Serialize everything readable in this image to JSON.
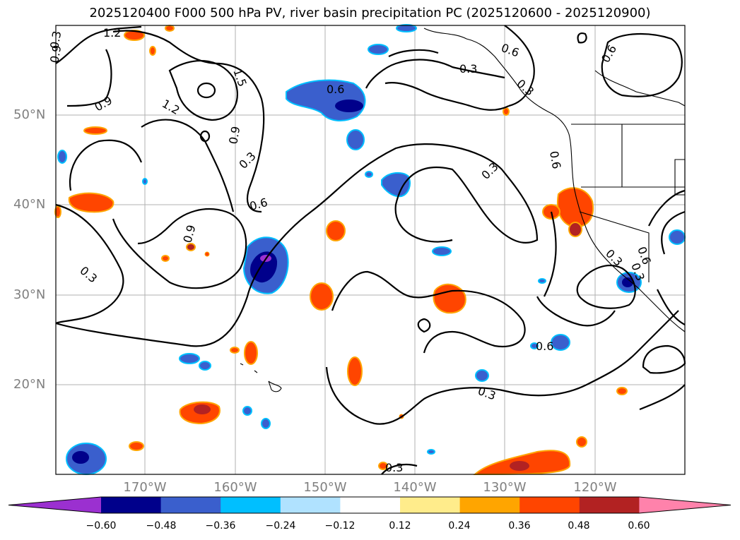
{
  "title": "2025120400 F000 500 hPa PV, river basin precipitation PC (2025120600 - 2025120900)",
  "lat_labels": [
    "50°N",
    "40°N",
    "30°N",
    "20°N"
  ],
  "lon_labels": [
    "170°W",
    "160°W",
    "150°W",
    "140°W",
    "130°W",
    "120°W"
  ],
  "contour_labels": [
    "1.2",
    "0.9",
    "0.3",
    "1.5",
    "1.2",
    "0.9",
    "0.6",
    "0.3",
    "0.6",
    "0.9",
    "0.3",
    "0.3",
    "0.6",
    "0.6",
    "0.3",
    "0.3",
    "0.6",
    "0.9",
    "0.3",
    "0.6",
    "0.3",
    "0.3",
    "0.6",
    "0.3"
  ],
  "colorbar": {
    "ticks": [
      "−0.60",
      "−0.48",
      "−0.36",
      "−0.24",
      "−0.12",
      "0.12",
      "0.24",
      "0.36",
      "0.48",
      "0.60"
    ],
    "colors": [
      "#9b30d0",
      "#00008b",
      "#3a5fcd",
      "#00bfff",
      "#b0e2ff",
      "#ffffff",
      "#ffec8b",
      "#ffa500",
      "#ff4500",
      "#b22222",
      "#ff82ab"
    ]
  },
  "colors": {
    "neg_strong": "#00008b",
    "neg_mid": "#3a5fcd",
    "neg_light": "#00bfff",
    "pos_light": "#ffec8b",
    "pos_mid": "#ffa500",
    "pos_strong": "#ff4500",
    "pos_deep": "#b22222",
    "grid": "#b0b0b0",
    "axis_label": "#808080"
  }
}
